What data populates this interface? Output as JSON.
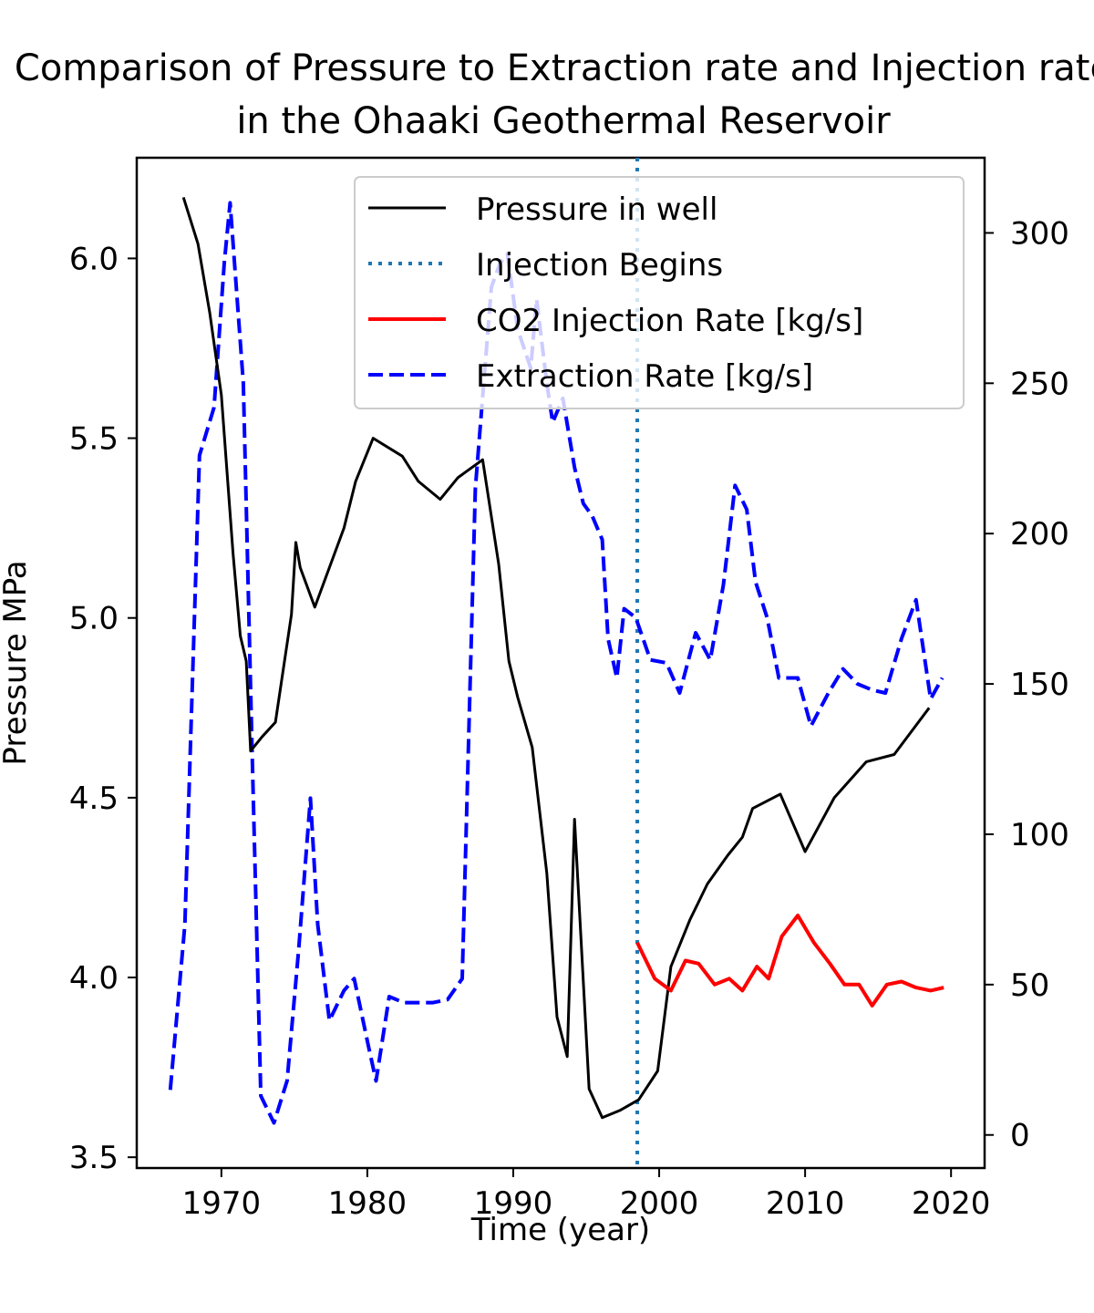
{
  "chart_data": {
    "type": "line",
    "title": "Comparison of Pressure to Extraction rate and Injection rate",
    "subtitle": "in the Ohaaki Geothermal Reservoir",
    "xlabel": "Time (year)",
    "ylabel": "Pressure MPa",
    "y2label": "",
    "xlim": [
      1964.2,
      2022.3
    ],
    "ylim": [
      3.47,
      6.28
    ],
    "y2lim": [
      -11,
      325
    ],
    "x_ticks": [
      1970,
      1980,
      1990,
      2000,
      2010,
      2020
    ],
    "y_ticks": [
      3.5,
      4.0,
      4.5,
      5.0,
      5.5,
      6.0
    ],
    "y2_ticks": [
      0,
      50,
      100,
      150,
      200,
      250,
      300
    ],
    "x_tick_labels": [
      "1970",
      "1980",
      "1990",
      "2000",
      "2010",
      "2020"
    ],
    "y_tick_labels": [
      "3.5",
      "4.0",
      "4.5",
      "5.0",
      "5.5",
      "6.0"
    ],
    "y2_tick_labels": [
      "0",
      "50",
      "100",
      "150",
      "200",
      "250",
      "300"
    ],
    "grid": false,
    "legend_position": "upper-right",
    "legend": [
      "Pressure in well",
      "Injection Begins",
      "CO2 Injection Rate [kg/s]",
      "Extraction Rate [kg/s]"
    ],
    "injection_begins_year": 1998.5,
    "series": [
      {
        "name": "Pressure in well",
        "axis": "left",
        "color": "#000000",
        "style": "solid",
        "x": [
          1967.4,
          1968.4,
          1969.2,
          1970.0,
          1970.8,
          1971.3,
          1971.7,
          1972.0,
          1972.8,
          1973.7,
          1974.8,
          1975.1,
          1975.4,
          1976.4,
          1977.4,
          1978.4,
          1979.2,
          1980.4,
          1982.4,
          1983.5,
          1985.0,
          1986.2,
          1987.9,
          1989.0,
          1989.7,
          1990.3,
          1991.3,
          1992.3,
          1993.0,
          1993.7,
          1994.2,
          1995.2,
          1996.1,
          1997.3,
          1998.6,
          1999.9,
          2000.8,
          2002.1,
          2003.3,
          2004.7,
          2005.7,
          2006.4,
          2008.3,
          2010.0,
          2012.0,
          2014.2,
          2016.1,
          2018.5
        ],
        "values": [
          6.17,
          6.04,
          5.85,
          5.62,
          5.18,
          4.95,
          4.88,
          4.63,
          4.67,
          4.71,
          5.01,
          5.21,
          5.14,
          5.03,
          5.14,
          5.25,
          5.38,
          5.5,
          5.45,
          5.38,
          5.33,
          5.39,
          5.44,
          5.15,
          4.88,
          4.78,
          4.64,
          4.29,
          3.89,
          3.78,
          4.44,
          3.69,
          3.61,
          3.63,
          3.66,
          3.74,
          4.03,
          4.16,
          4.26,
          4.34,
          4.39,
          4.47,
          4.51,
          4.35,
          4.5,
          4.6,
          4.62,
          4.75
        ]
      },
      {
        "name": "CO2 Injection Rate [kg/s]",
        "axis": "right",
        "color": "#ff0000",
        "style": "solid",
        "x": [
          1998.5,
          1999.7,
          2000.8,
          2001.8,
          2002.7,
          2003.8,
          2004.8,
          2005.7,
          2006.7,
          2007.5,
          2008.4,
          2009.5,
          2010.6,
          2011.7,
          2012.7,
          2013.7,
          2014.6,
          2015.6,
          2016.6,
          2017.6,
          2018.6,
          2019.5
        ],
        "values": [
          64,
          52,
          48,
          58,
          57,
          50,
          52,
          48,
          56,
          52,
          66,
          73,
          64,
          57,
          50,
          50,
          43,
          50,
          51,
          49,
          48,
          49
        ]
      },
      {
        "name": "Extraction Rate [kg/s]",
        "axis": "right",
        "color": "#0000ff",
        "style": "dashed",
        "x": [
          1966.5,
          1967.5,
          1968.5,
          1969.5,
          1970.2,
          1970.6,
          1971.5,
          1972.1,
          1972.7,
          1973.6,
          1974.5,
          1975.3,
          1976.1,
          1976.6,
          1977.4,
          1978.4,
          1979.1,
          1980.1,
          1980.6,
          1981.5,
          1982.5,
          1983.4,
          1984.5,
          1985.5,
          1986.5,
          1987.4,
          1988.5,
          1989.1,
          1989.6,
          1990.3,
          1991.2,
          1991.6,
          1992.3,
          1992.7,
          1993.4,
          1994.2,
          1994.8,
          1995.4,
          1996.1,
          1996.5,
          1997.1,
          1997.6,
          1998.4,
          1999.4,
          2000.5,
          2001.4,
          2002.5,
          2003.5,
          2004.4,
          2005.2,
          2006.0,
          2006.6,
          2007.4,
          2008.2,
          2009.5,
          2010.4,
          2011.6,
          2012.6,
          2013.6,
          2014.6,
          2015.5,
          2016.6,
          2017.6,
          2018.6,
          2019.4
        ],
        "values": [
          15,
          70,
          226,
          242,
          290,
          310,
          250,
          128,
          13,
          4,
          18,
          62,
          112,
          70,
          38,
          48,
          52,
          29,
          18,
          46,
          44,
          44,
          44,
          45,
          52,
          215,
          282,
          290,
          293,
          268,
          255,
          278,
          250,
          237,
          245,
          222,
          210,
          206,
          198,
          165,
          152,
          175,
          172,
          158,
          157,
          147,
          167,
          158,
          183,
          216,
          208,
          184,
          172,
          152,
          152,
          136,
          147,
          155,
          150,
          148,
          147,
          165,
          178,
          145,
          152
        ]
      }
    ]
  }
}
